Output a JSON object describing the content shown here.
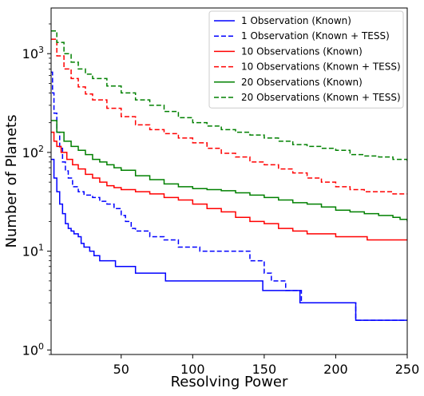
{
  "chart_data": {
    "type": "line",
    "title": "",
    "xlabel": "Resolving Power",
    "ylabel": "Number of Planets",
    "xlim": [
      1,
      250
    ],
    "ylim": [
      0.9,
      2900
    ],
    "y_scale": "log",
    "grid": false,
    "legend_position": "top-right",
    "x_ticks": [
      {
        "value": 50,
        "label": "50"
      },
      {
        "value": 100,
        "label": "100"
      },
      {
        "value": 150,
        "label": "150"
      },
      {
        "value": 200,
        "label": "200"
      },
      {
        "value": 250,
        "label": "250"
      }
    ],
    "y_ticks": [
      {
        "value": 1,
        "base": "10",
        "exp": "0"
      },
      {
        "value": 10,
        "base": "10",
        "exp": "1"
      },
      {
        "value": 100,
        "base": "10",
        "exp": "2"
      },
      {
        "value": 1000,
        "base": "10",
        "exp": "3"
      }
    ],
    "series": [
      {
        "name": "1 Observation (Known)",
        "color": "#0000ff",
        "dash": "solid",
        "points": [
          [
            1,
            85
          ],
          [
            3,
            55
          ],
          [
            5,
            40
          ],
          [
            7,
            30
          ],
          [
            9,
            24
          ],
          [
            11,
            19
          ],
          [
            13,
            17
          ],
          [
            15,
            16
          ],
          [
            17,
            15
          ],
          [
            20,
            14
          ],
          [
            22,
            12
          ],
          [
            24,
            11
          ],
          [
            28,
            10
          ],
          [
            31,
            9
          ],
          [
            35,
            8
          ],
          [
            46,
            7
          ],
          [
            60,
            6
          ],
          [
            81,
            5
          ],
          [
            149,
            4
          ],
          [
            175,
            3
          ],
          [
            214,
            2
          ],
          [
            250,
            2
          ]
        ]
      },
      {
        "name": "1 Observation (Known + TESS)",
        "color": "#0000ff",
        "dash": "dashed",
        "points": [
          [
            1,
            650
          ],
          [
            2,
            400
          ],
          [
            3,
            250
          ],
          [
            5,
            160
          ],
          [
            7,
            110
          ],
          [
            9,
            80
          ],
          [
            11,
            65
          ],
          [
            13,
            55
          ],
          [
            16,
            45
          ],
          [
            20,
            40
          ],
          [
            24,
            37
          ],
          [
            30,
            35
          ],
          [
            35,
            32
          ],
          [
            40,
            30
          ],
          [
            45,
            27
          ],
          [
            50,
            23
          ],
          [
            53,
            20
          ],
          [
            57,
            17
          ],
          [
            60,
            16
          ],
          [
            70,
            14
          ],
          [
            80,
            13
          ],
          [
            90,
            11
          ],
          [
            100,
            11
          ],
          [
            105,
            10
          ],
          [
            140,
            8
          ],
          [
            150,
            6
          ],
          [
            155,
            5
          ],
          [
            165,
            4
          ],
          [
            176,
            3
          ],
          [
            214,
            2
          ],
          [
            250,
            2
          ]
        ]
      },
      {
        "name": "10 Observations (Known)",
        "color": "#ff0000",
        "dash": "solid",
        "points": [
          [
            1,
            160
          ],
          [
            3,
            130
          ],
          [
            5,
            115
          ],
          [
            8,
            100
          ],
          [
            12,
            85
          ],
          [
            16,
            75
          ],
          [
            20,
            68
          ],
          [
            25,
            60
          ],
          [
            30,
            55
          ],
          [
            35,
            50
          ],
          [
            40,
            46
          ],
          [
            45,
            44
          ],
          [
            50,
            42
          ],
          [
            60,
            40
          ],
          [
            70,
            38
          ],
          [
            80,
            35
          ],
          [
            90,
            33
          ],
          [
            100,
            30
          ],
          [
            110,
            27
          ],
          [
            120,
            25
          ],
          [
            130,
            22
          ],
          [
            140,
            20
          ],
          [
            150,
            19
          ],
          [
            160,
            17
          ],
          [
            170,
            16
          ],
          [
            180,
            15
          ],
          [
            190,
            15
          ],
          [
            200,
            14
          ],
          [
            210,
            14
          ],
          [
            220,
            14
          ],
          [
            222,
            13
          ],
          [
            250,
            13
          ]
        ]
      },
      {
        "name": "10 Observations (Known + TESS)",
        "color": "#ff0000",
        "dash": "dashed",
        "points": [
          [
            1,
            1400
          ],
          [
            5,
            950
          ],
          [
            10,
            700
          ],
          [
            15,
            560
          ],
          [
            20,
            460
          ],
          [
            25,
            390
          ],
          [
            30,
            340
          ],
          [
            40,
            280
          ],
          [
            50,
            230
          ],
          [
            60,
            190
          ],
          [
            70,
            170
          ],
          [
            80,
            155
          ],
          [
            90,
            140
          ],
          [
            100,
            125
          ],
          [
            110,
            110
          ],
          [
            120,
            98
          ],
          [
            130,
            90
          ],
          [
            140,
            80
          ],
          [
            150,
            75
          ],
          [
            160,
            68
          ],
          [
            170,
            62
          ],
          [
            180,
            55
          ],
          [
            190,
            50
          ],
          [
            200,
            45
          ],
          [
            210,
            42
          ],
          [
            220,
            40
          ],
          [
            230,
            40
          ],
          [
            240,
            38
          ],
          [
            250,
            38
          ]
        ]
      },
      {
        "name": "20 Observations (Known)",
        "color": "#008000",
        "dash": "solid",
        "points": [
          [
            1,
            210
          ],
          [
            5,
            160
          ],
          [
            10,
            130
          ],
          [
            15,
            115
          ],
          [
            20,
            105
          ],
          [
            25,
            95
          ],
          [
            30,
            85
          ],
          [
            35,
            80
          ],
          [
            40,
            75
          ],
          [
            45,
            70
          ],
          [
            50,
            66
          ],
          [
            60,
            58
          ],
          [
            70,
            53
          ],
          [
            80,
            48
          ],
          [
            90,
            45
          ],
          [
            100,
            43
          ],
          [
            110,
            42
          ],
          [
            120,
            41
          ],
          [
            130,
            39
          ],
          [
            140,
            37
          ],
          [
            150,
            35
          ],
          [
            160,
            33
          ],
          [
            170,
            31
          ],
          [
            180,
            30
          ],
          [
            190,
            28
          ],
          [
            200,
            26
          ],
          [
            210,
            25
          ],
          [
            220,
            24
          ],
          [
            230,
            23
          ],
          [
            240,
            22
          ],
          [
            245,
            21
          ],
          [
            250,
            20
          ]
        ]
      },
      {
        "name": "20 Observations (Known + TESS)",
        "color": "#008000",
        "dash": "dashed",
        "points": [
          [
            1,
            1700
          ],
          [
            5,
            1300
          ],
          [
            10,
            1000
          ],
          [
            15,
            820
          ],
          [
            20,
            700
          ],
          [
            25,
            620
          ],
          [
            30,
            560
          ],
          [
            40,
            470
          ],
          [
            50,
            400
          ],
          [
            60,
            340
          ],
          [
            70,
            300
          ],
          [
            80,
            260
          ],
          [
            90,
            225
          ],
          [
            100,
            200
          ],
          [
            110,
            185
          ],
          [
            120,
            170
          ],
          [
            130,
            160
          ],
          [
            140,
            150
          ],
          [
            150,
            140
          ],
          [
            160,
            130
          ],
          [
            170,
            120
          ],
          [
            180,
            115
          ],
          [
            190,
            110
          ],
          [
            200,
            105
          ],
          [
            210,
            95
          ],
          [
            220,
            92
          ],
          [
            230,
            90
          ],
          [
            240,
            85
          ],
          [
            250,
            78
          ]
        ]
      }
    ]
  }
}
